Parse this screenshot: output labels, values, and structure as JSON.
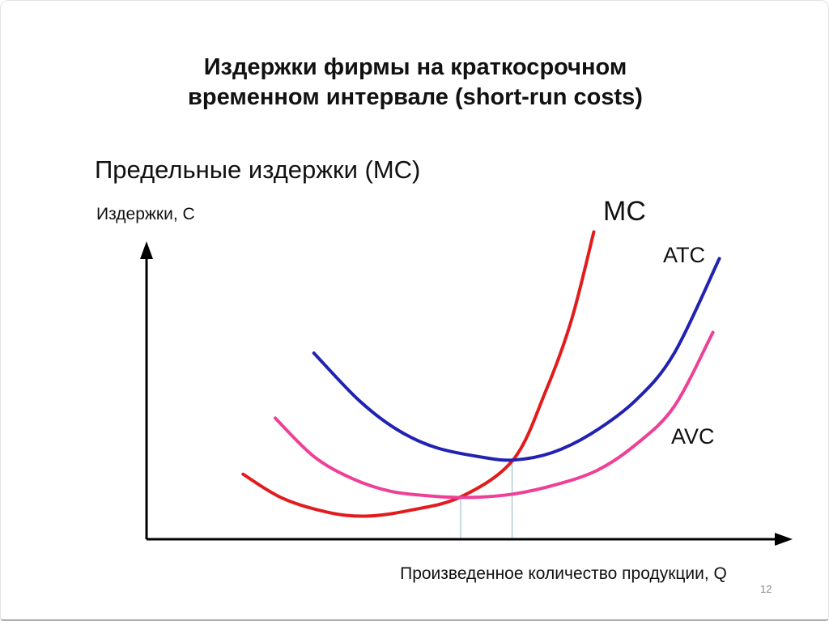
{
  "slide": {
    "title_line1": "Издержки фирмы на краткосрочном",
    "title_line2": "временном интервале (short-run costs)",
    "subtitle": "Предельные издержки (МС)",
    "page_number": "12"
  },
  "chart_data": {
    "type": "line",
    "title": "Издержки фирмы на краткосрочном временном интервале (short-run costs)",
    "subtitle": "Предельные издержки (МС)",
    "xlabel": "Произведенное количество продукции, Q",
    "ylabel": "Издержки, С",
    "x_range": [
      0,
      10
    ],
    "y_range": [
      0,
      10.5
    ],
    "axis_tick_labels": false,
    "grid": false,
    "legend_position": "inline-curve-labels",
    "axis_color": "#000000",
    "series": [
      {
        "name": "MC",
        "label": "МС",
        "color": "#e21b1c",
        "points": [
          [
            1.5,
            2.2
          ],
          [
            2.1,
            1.4
          ],
          [
            2.8,
            0.92
          ],
          [
            3.4,
            0.78
          ],
          [
            4.1,
            0.98
          ],
          [
            4.9,
            1.45
          ],
          [
            5.7,
            2.7
          ],
          [
            6.2,
            5.0
          ],
          [
            6.6,
            7.4
          ],
          [
            6.95,
            10.4
          ]
        ]
      },
      {
        "name": "ATC",
        "label": "ATC",
        "color": "#2222b2",
        "points": [
          [
            2.6,
            6.3
          ],
          [
            3.3,
            4.7
          ],
          [
            3.9,
            3.7
          ],
          [
            4.5,
            3.1
          ],
          [
            5.2,
            2.78
          ],
          [
            5.7,
            2.68
          ],
          [
            6.3,
            2.93
          ],
          [
            6.9,
            3.56
          ],
          [
            7.6,
            4.7
          ],
          [
            8.2,
            6.3
          ],
          [
            8.9,
            9.5
          ]
        ]
      },
      {
        "name": "AVC",
        "label": "AVC",
        "color": "#ee4097",
        "points": [
          [
            2.0,
            4.1
          ],
          [
            2.6,
            2.8
          ],
          [
            3.2,
            2.05
          ],
          [
            3.8,
            1.62
          ],
          [
            4.5,
            1.45
          ],
          [
            5.1,
            1.42
          ],
          [
            5.7,
            1.53
          ],
          [
            6.35,
            1.84
          ],
          [
            7.0,
            2.33
          ],
          [
            7.6,
            3.2
          ],
          [
            8.2,
            4.5
          ],
          [
            8.8,
            7.0
          ]
        ]
      }
    ],
    "guides": {
      "color": "#a9c3cf",
      "lines": [
        {
          "q": 4.88,
          "c": 1.45
        },
        {
          "q": 5.68,
          "c": 2.7
        }
      ]
    }
  }
}
